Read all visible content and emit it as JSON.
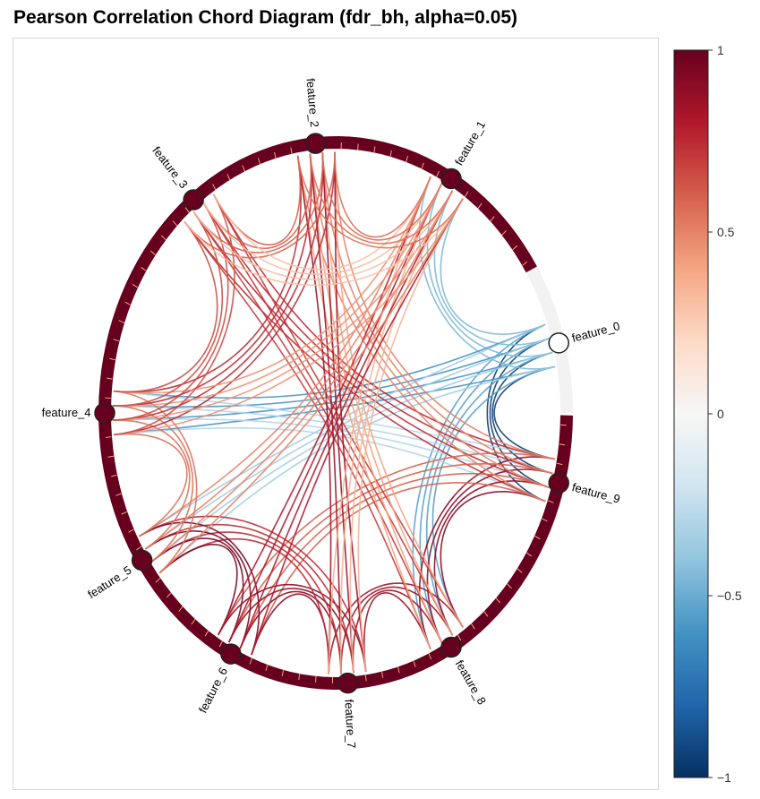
{
  "title": "Pearson Correlation Chord Diagram (fdr_bh, alpha=0.05)",
  "features": [
    "feature_0",
    "feature_1",
    "feature_2",
    "feature_3",
    "feature_4",
    "feature_5",
    "feature_6",
    "feature_7",
    "feature_8",
    "feature_9"
  ],
  "node_colors": {
    "feature_0": "#ffffff",
    "default": "#67001f"
  },
  "colorbar": {
    "range": [
      -1,
      1
    ],
    "ticks": [
      {
        "value": 1,
        "label": "1"
      },
      {
        "value": 0.5,
        "label": "0.5"
      },
      {
        "value": 0,
        "label": "0"
      },
      {
        "value": -0.5,
        "label": "−0.5"
      },
      {
        "value": -1,
        "label": "−1"
      }
    ],
    "colormap": "RdBu_r",
    "stops": [
      "#053061",
      "#2166ac",
      "#4393c3",
      "#92c5de",
      "#d1e5f0",
      "#f7f7f7",
      "#fddbc7",
      "#f4a582",
      "#d6604d",
      "#b2182b",
      "#67001f"
    ]
  },
  "chart_data": {
    "type": "chord",
    "title": "Pearson Correlation Chord Diagram (fdr_bh, alpha=0.05)",
    "nodes": [
      "feature_0",
      "feature_1",
      "feature_2",
      "feature_3",
      "feature_4",
      "feature_5",
      "feature_6",
      "feature_7",
      "feature_8",
      "feature_9"
    ],
    "links": [
      {
        "source": "feature_0",
        "target": "feature_9",
        "r": -0.95
      },
      {
        "source": "feature_0",
        "target": "feature_8",
        "r": -0.55
      },
      {
        "source": "feature_0",
        "target": "feature_1",
        "r": -0.45
      },
      {
        "source": "feature_0",
        "target": "feature_4",
        "r": -0.6
      },
      {
        "source": "feature_0",
        "target": "feature_5",
        "r": -0.35
      },
      {
        "source": "feature_9",
        "target": "feature_4",
        "r": -0.3
      },
      {
        "source": "feature_9",
        "target": "feature_8",
        "r": 0.9
      },
      {
        "source": "feature_9",
        "target": "feature_3",
        "r": 0.75
      },
      {
        "source": "feature_9",
        "target": "feature_6",
        "r": 0.6
      },
      {
        "source": "feature_9",
        "target": "feature_2",
        "r": 0.5
      },
      {
        "source": "feature_8",
        "target": "feature_7",
        "r": 0.85
      },
      {
        "source": "feature_8",
        "target": "feature_3",
        "r": 0.7
      },
      {
        "source": "feature_8",
        "target": "feature_2",
        "r": 0.4
      },
      {
        "source": "feature_7",
        "target": "feature_6",
        "r": 0.9
      },
      {
        "source": "feature_7",
        "target": "feature_5",
        "r": 0.75
      },
      {
        "source": "feature_7",
        "target": "feature_2",
        "r": 0.85
      },
      {
        "source": "feature_7",
        "target": "feature_1",
        "r": 0.35
      },
      {
        "source": "feature_6",
        "target": "feature_5",
        "r": 0.95
      },
      {
        "source": "feature_6",
        "target": "feature_1",
        "r": 0.8
      },
      {
        "source": "feature_5",
        "target": "feature_1",
        "r": 0.5
      },
      {
        "source": "feature_5",
        "target": "feature_4",
        "r": 0.55
      },
      {
        "source": "feature_4",
        "target": "feature_2",
        "r": 0.75
      },
      {
        "source": "feature_4",
        "target": "feature_1",
        "r": 0.45
      },
      {
        "source": "feature_4",
        "target": "feature_3",
        "r": 0.65
      },
      {
        "source": "feature_3",
        "target": "feature_2",
        "r": 0.6
      },
      {
        "source": "feature_3",
        "target": "feature_1",
        "r": 0.3
      },
      {
        "source": "feature_2",
        "target": "feature_1",
        "r": 0.55
      }
    ]
  }
}
